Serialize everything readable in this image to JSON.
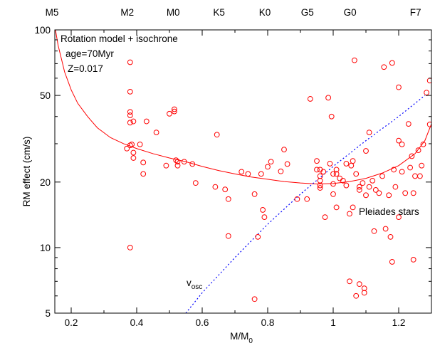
{
  "chart_data": {
    "type": "scatter",
    "xlabel": "M/M",
    "xlabel_sub": "0",
    "ylabel": "RM effect (cm/s)",
    "x_range": [
      0.15,
      1.3
    ],
    "y_range": [
      5,
      100
    ],
    "y_scale": "log",
    "x_ticks": [
      {
        "value": 0.2,
        "label": "0.2"
      },
      {
        "value": 0.4,
        "label": "0.4"
      },
      {
        "value": 0.6,
        "label": "0.6"
      },
      {
        "value": 0.8,
        "label": "0.8"
      },
      {
        "value": 1.0,
        "label": "1"
      },
      {
        "value": 1.2,
        "label": "1.2"
      }
    ],
    "y_ticks": [
      {
        "value": 5,
        "label": "5"
      },
      {
        "value": 10,
        "label": "10"
      },
      {
        "value": 20,
        "label": "20"
      },
      {
        "value": 50,
        "label": "50"
      },
      {
        "value": 100,
        "label": "100"
      }
    ],
    "spectral_types": [
      {
        "value": 0.15,
        "label": "M5"
      },
      {
        "value": 0.38,
        "label": "M2"
      },
      {
        "value": 0.52,
        "label": "M0"
      },
      {
        "value": 0.66,
        "label": "K5"
      },
      {
        "value": 0.8,
        "label": "K0"
      },
      {
        "value": 0.93,
        "label": "G5"
      },
      {
        "value": 1.06,
        "label": "G0"
      },
      {
        "value": 1.26,
        "label": "F7"
      }
    ],
    "annotations": {
      "model_label": "Rotation model + isochrone",
      "age_label": "age=70Myr",
      "z_label": "Z=0.017",
      "points_label": "Pleiades stars",
      "vosc_label": "v",
      "vosc_sub": "osc"
    },
    "series": [
      {
        "name": "Rotation model + isochrone",
        "style": "line",
        "color": "#ff0000",
        "points": [
          [
            0.152,
            100
          ],
          [
            0.16,
            85
          ],
          [
            0.18,
            64
          ],
          [
            0.2,
            53
          ],
          [
            0.22,
            46
          ],
          [
            0.25,
            40
          ],
          [
            0.28,
            35.5
          ],
          [
            0.32,
            32
          ],
          [
            0.36,
            30
          ],
          [
            0.4,
            28.5
          ],
          [
            0.45,
            27
          ],
          [
            0.5,
            25.8
          ],
          [
            0.55,
            24.8
          ],
          [
            0.6,
            23.6
          ],
          [
            0.65,
            22.6
          ],
          [
            0.7,
            21.8
          ],
          [
            0.75,
            21.1
          ],
          [
            0.8,
            20.6
          ],
          [
            0.85,
            20.1
          ],
          [
            0.9,
            19.8
          ],
          [
            0.95,
            19.6
          ],
          [
            1.0,
            19.7
          ],
          [
            1.05,
            20.1
          ],
          [
            1.1,
            20.8
          ],
          [
            1.15,
            22.0
          ],
          [
            1.2,
            23.8
          ],
          [
            1.25,
            27.0
          ],
          [
            1.28,
            31.0
          ],
          [
            1.3,
            37.0
          ]
        ]
      },
      {
        "name": "v_osc",
        "style": "dotted-line",
        "color": "#0000ff",
        "points": [
          [
            0.55,
            5.0
          ],
          [
            0.6,
            6.2
          ],
          [
            0.7,
            9.0
          ],
          [
            0.8,
            12.8
          ],
          [
            0.9,
            17.6
          ],
          [
            1.0,
            23.6
          ],
          [
            1.1,
            31.0
          ],
          [
            1.2,
            40.0
          ],
          [
            1.28,
            50.0
          ]
        ]
      },
      {
        "name": "Pleiades stars",
        "style": "markers",
        "marker": "open-circle",
        "color": "#ff0000",
        "points": [
          [
            0.38,
            71
          ],
          [
            0.38,
            52
          ],
          [
            0.38,
            42
          ],
          [
            0.38,
            40.5
          ],
          [
            0.38,
            37.5
          ],
          [
            0.38,
            29.5
          ],
          [
            0.37,
            28.5
          ],
          [
            0.385,
            29.8
          ],
          [
            0.39,
            38
          ],
          [
            0.39,
            27.3
          ],
          [
            0.39,
            25.8
          ],
          [
            0.41,
            29.8
          ],
          [
            0.42,
            24.6
          ],
          [
            0.42,
            21.8
          ],
          [
            0.43,
            38
          ],
          [
            0.46,
            33.8
          ],
          [
            0.5,
            41.2
          ],
          [
            0.515,
            43.2
          ],
          [
            0.515,
            42.2
          ],
          [
            0.52,
            25.2
          ],
          [
            0.525,
            24.8
          ],
          [
            0.525,
            23.8
          ],
          [
            0.49,
            23.8
          ],
          [
            0.545,
            24.8
          ],
          [
            0.57,
            24.2
          ],
          [
            0.58,
            19.8
          ],
          [
            0.64,
            19.0
          ],
          [
            0.645,
            33.0
          ],
          [
            0.67,
            18.5
          ],
          [
            0.68,
            16.7
          ],
          [
            0.68,
            11.3
          ],
          [
            0.72,
            22.3
          ],
          [
            0.74,
            21.8
          ],
          [
            0.76,
            17.6
          ],
          [
            0.77,
            11.2
          ],
          [
            0.78,
            21.8
          ],
          [
            0.785,
            14.9
          ],
          [
            0.79,
            13.8
          ],
          [
            0.8,
            23.5
          ],
          [
            0.81,
            24.8
          ],
          [
            0.84,
            22.4
          ],
          [
            0.85,
            28.2
          ],
          [
            0.86,
            24.2
          ],
          [
            0.89,
            16.7
          ],
          [
            0.92,
            16.7
          ],
          [
            0.93,
            48.2
          ],
          [
            0.95,
            25.0
          ],
          [
            0.95,
            22.8
          ],
          [
            0.96,
            22.8
          ],
          [
            0.96,
            21.3
          ],
          [
            0.96,
            20.3
          ],
          [
            0.96,
            19.3
          ],
          [
            0.96,
            18.8
          ],
          [
            0.97,
            22.3
          ],
          [
            0.975,
            13.8
          ],
          [
            0.985,
            48.8
          ],
          [
            0.99,
            24.3
          ],
          [
            0.995,
            40.0
          ],
          [
            1.0,
            21.8
          ],
          [
            1.0,
            19.6
          ],
          [
            1.0,
            17.6
          ],
          [
            1.01,
            22.8
          ],
          [
            1.01,
            21.8
          ],
          [
            1.01,
            15.3
          ],
          [
            1.02,
            20.8
          ],
          [
            1.03,
            20.3
          ],
          [
            1.04,
            24.3
          ],
          [
            1.04,
            19.3
          ],
          [
            1.05,
            14.3
          ],
          [
            1.055,
            23.8
          ],
          [
            1.06,
            25.0
          ],
          [
            1.06,
            15.3
          ],
          [
            1.065,
            72.5
          ],
          [
            1.07,
            21.8
          ],
          [
            1.08,
            19.0
          ],
          [
            1.08,
            18.4
          ],
          [
            1.09,
            19.8
          ],
          [
            1.1,
            17.4
          ],
          [
            1.1,
            27.8
          ],
          [
            1.11,
            33.8
          ],
          [
            1.11,
            19.0
          ],
          [
            1.12,
            20.3
          ],
          [
            1.125,
            11.9
          ],
          [
            1.13,
            18.4
          ],
          [
            1.14,
            17.8
          ],
          [
            1.15,
            21.3
          ],
          [
            1.155,
            67.5
          ],
          [
            1.16,
            12.2
          ],
          [
            1.17,
            17.4
          ],
          [
            1.175,
            11.2
          ],
          [
            1.18,
            70.5
          ],
          [
            1.185,
            22.8
          ],
          [
            1.19,
            19.0
          ],
          [
            1.2,
            31.0
          ],
          [
            1.2,
            54.5
          ],
          [
            1.21,
            22.3
          ],
          [
            1.21,
            29.8
          ],
          [
            1.22,
            17.8
          ],
          [
            1.23,
            37.0
          ],
          [
            1.235,
            23.3
          ],
          [
            1.24,
            26.3
          ],
          [
            1.245,
            17.8
          ],
          [
            1.25,
            21.3
          ],
          [
            1.26,
            28.0
          ],
          [
            1.265,
            21.3
          ],
          [
            1.27,
            23.8
          ],
          [
            1.275,
            29.8
          ],
          [
            1.285,
            51.5
          ],
          [
            1.295,
            58.5
          ],
          [
            1.295,
            36.8
          ],
          [
            1.05,
            7.0
          ],
          [
            1.07,
            6.0
          ],
          [
            1.08,
            6.8
          ],
          [
            1.095,
            6.5
          ],
          [
            1.095,
            6.2
          ],
          [
            1.18,
            8.6
          ],
          [
            1.245,
            8.8
          ],
          [
            0.76,
            5.8
          ],
          [
            0.38,
            10.0
          ],
          [
            1.2,
            13.8
          ]
        ]
      }
    ]
  }
}
